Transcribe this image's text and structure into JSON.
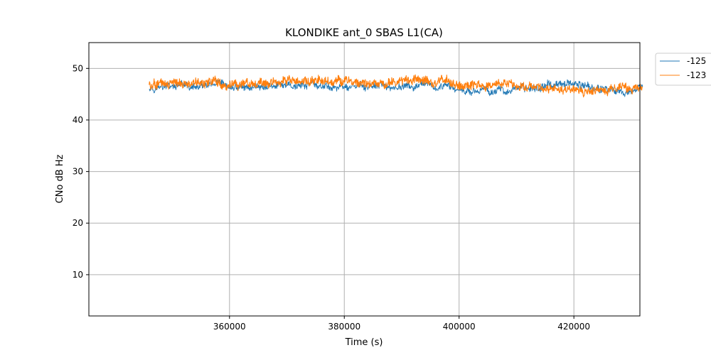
{
  "chart_data": {
    "type": "line",
    "title": "KLONDIKE ant_0 SBAS L1(CA)",
    "xlabel": "Time (s)",
    "ylabel": "CNo dB Hz",
    "xlim": [
      335500,
      431500
    ],
    "ylim": [
      2,
      55
    ],
    "xticks": [
      360000,
      380000,
      400000,
      420000
    ],
    "yticks": [
      10,
      20,
      30,
      40,
      50
    ],
    "grid": true,
    "legend_position": "outside-top-right",
    "series": [
      {
        "name": "-125",
        "color": "#1f77b4",
        "x": [
          346000,
          350000,
          354000,
          358000,
          362000,
          366000,
          370000,
          374000,
          378000,
          382000,
          386000,
          390000,
          394000,
          398000,
          402000,
          406000,
          410000,
          414000,
          418000,
          422000,
          426000,
          430000,
          432000
        ],
        "y": [
          46.5,
          46.4,
          46.3,
          46.4,
          46.2,
          46.6,
          46.5,
          46.7,
          46.4,
          46.4,
          46.3,
          46.4,
          46.3,
          46.2,
          45.8,
          45.7,
          45.9,
          46.4,
          47.0,
          46.8,
          45.8,
          45.7,
          46.0
        ],
        "spread": [
          1.2,
          1.1,
          1.1,
          1.1,
          1.1,
          1.1,
          1.1,
          1.2,
          1.1,
          1.0,
          1.0,
          1.0,
          1.0,
          1.0,
          1.0,
          1.0,
          1.0,
          1.2,
          1.4,
          1.4,
          1.2,
          1.2,
          1.2
        ]
      },
      {
        "name": "-123",
        "color": "#ff7f0e",
        "x": [
          346000,
          350000,
          354000,
          358000,
          362000,
          366000,
          370000,
          374000,
          378000,
          382000,
          386000,
          390000,
          394000,
          398000,
          402000,
          406000,
          410000,
          414000,
          418000,
          422000,
          426000,
          430000,
          432000
        ],
        "y": [
          47.2,
          47.1,
          47.0,
          47.2,
          46.9,
          47.3,
          47.3,
          47.6,
          47.7,
          47.5,
          47.3,
          47.6,
          47.7,
          47.3,
          46.8,
          46.6,
          46.8,
          46.4,
          45.8,
          45.8,
          46.0,
          46.2,
          46.3
        ],
        "spread": [
          1.6,
          1.4,
          1.4,
          1.5,
          1.4,
          1.4,
          1.4,
          1.5,
          1.6,
          1.5,
          1.4,
          1.5,
          1.6,
          1.5,
          1.5,
          1.5,
          1.4,
          1.4,
          1.3,
          1.3,
          1.4,
          1.4,
          1.4
        ]
      }
    ]
  }
}
